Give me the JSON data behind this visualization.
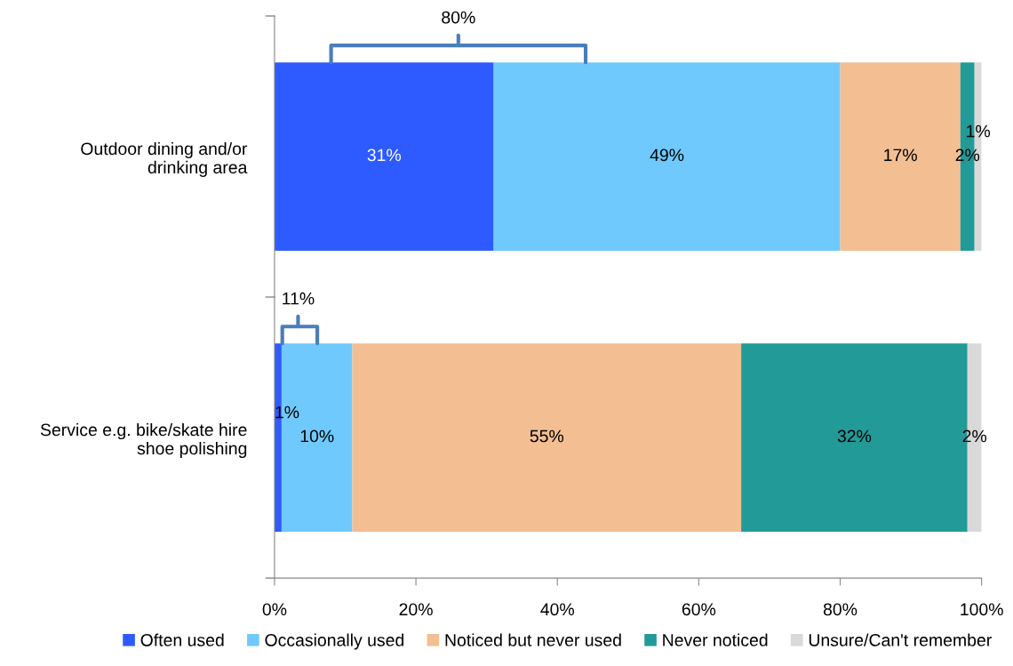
{
  "chart_data": {
    "type": "bar",
    "orientation": "horizontal",
    "stacked": true,
    "categories": [
      "Outdoor dining and/or\ndrinking area",
      "Service e.g. bike/skate hire\nshoe polishing"
    ],
    "series": [
      {
        "name": "Often used",
        "color": "#2e5bff",
        "values": [
          31,
          1
        ],
        "value_labels": [
          "31%",
          "1%"
        ]
      },
      {
        "name": "Occasionally used",
        "color": "#6fc9fd",
        "values": [
          49,
          10
        ],
        "value_labels": [
          "49%",
          "10%"
        ]
      },
      {
        "name": "Noticed but never used",
        "color": "#f2be92",
        "values": [
          17,
          55
        ],
        "value_labels": [
          "17%",
          "55%"
        ]
      },
      {
        "name": "Never noticed",
        "color": "#229a97",
        "values": [
          2,
          32
        ],
        "value_labels": [
          "2%",
          "32%"
        ]
      },
      {
        "name": "Unsure/Can't remember",
        "color": "#d9d9d9",
        "values": [
          1,
          2
        ],
        "value_labels": [
          "1%",
          "2%"
        ]
      }
    ],
    "xlim": [
      0,
      100
    ],
    "xticks": [
      {
        "value": 0,
        "label": "0%"
      },
      {
        "value": 20,
        "label": "20%"
      },
      {
        "value": 40,
        "label": "40%"
      },
      {
        "value": 60,
        "label": "60%"
      },
      {
        "value": 80,
        "label": "80%"
      },
      {
        "value": 100,
        "label": "100%"
      }
    ],
    "annotations": [
      "80%",
      "11%"
    ],
    "legend": "bottom",
    "grid": false
  }
}
